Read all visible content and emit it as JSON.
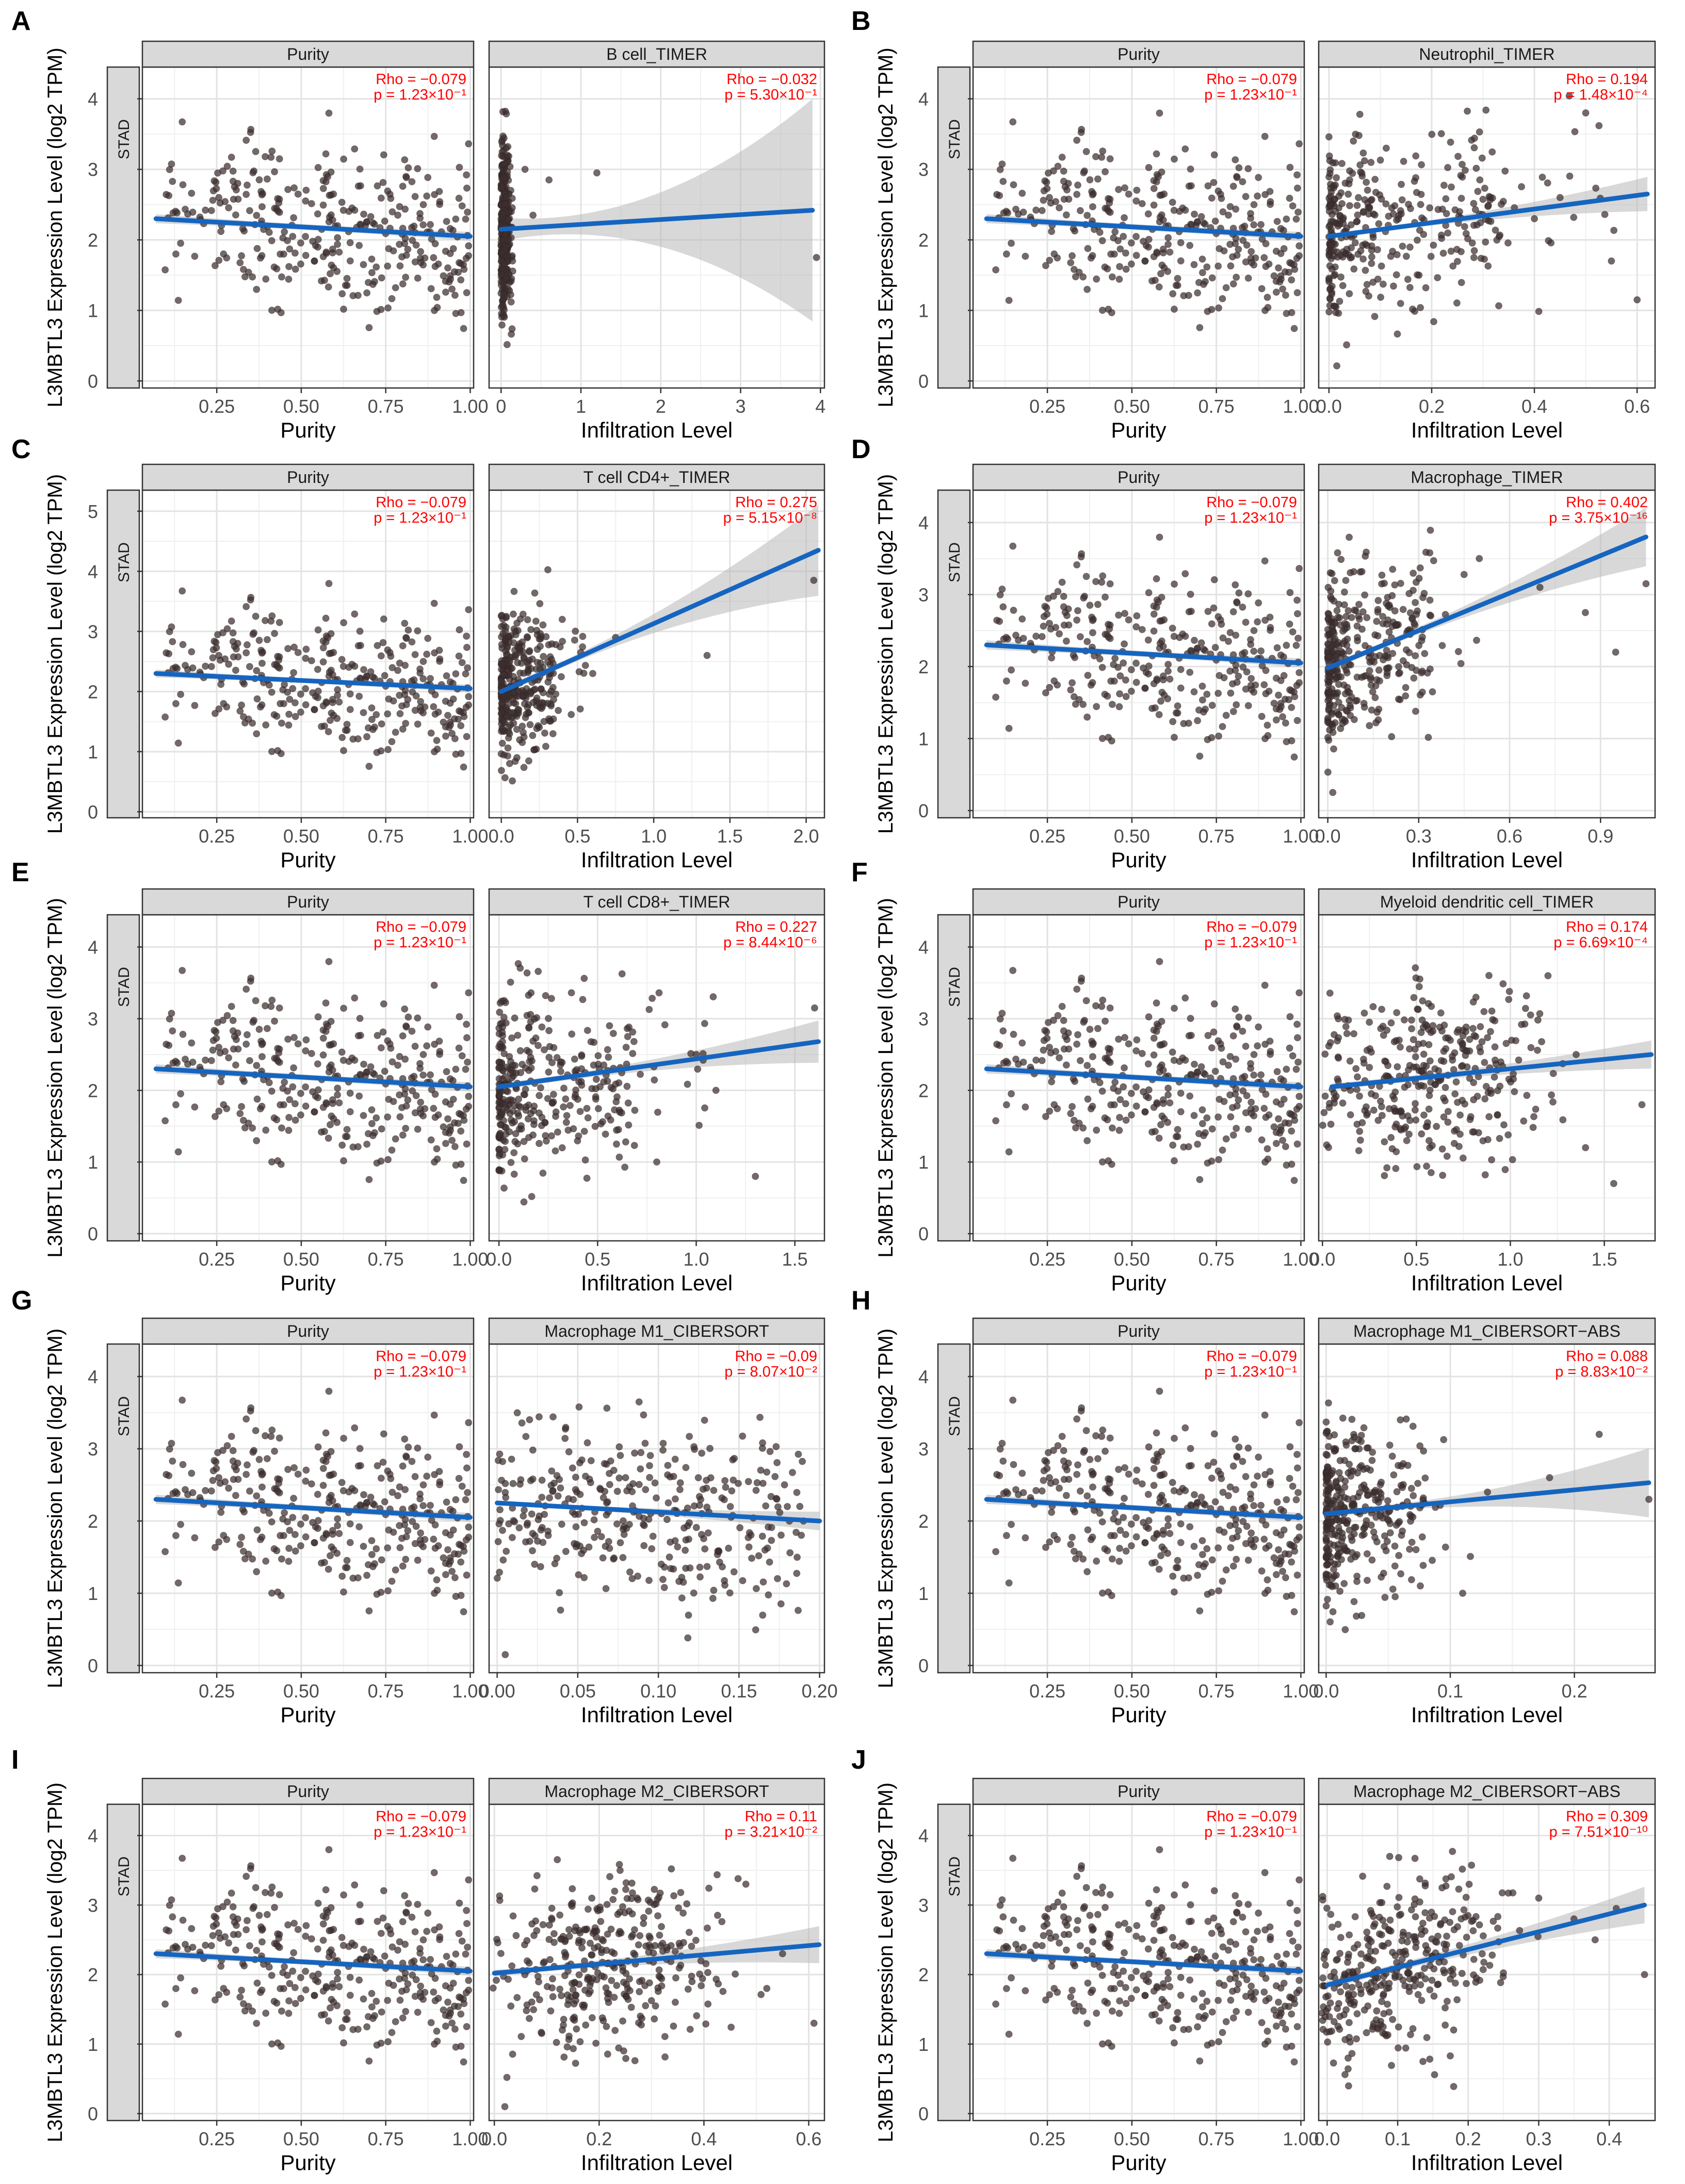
{
  "figure": {
    "y_axis_label": "L3MBTL3 Expression Level (log2 TPM)",
    "row_strip": "STAD",
    "purity_x_label": "Purity",
    "infiltration_x_label": "Infiltration Level"
  },
  "chart_data": [
    {
      "panel": "A",
      "type": "scatter",
      "cancer": "STAD",
      "ylim": [
        -0.1,
        4.45
      ],
      "yticks": [
        0,
        1,
        2,
        3,
        4
      ],
      "purity": {
        "title": "Purity",
        "rho": "Rho = −0.079",
        "p": "p = 1.23×10⁻¹",
        "xlim": [
          0.03,
          1.01
        ],
        "xticks": [
          0.25,
          0.5,
          0.75,
          1.0
        ],
        "xtick_labels": [
          "0.25",
          "0.50",
          "0.75",
          "1.00"
        ],
        "fit": [
          2.3,
          2.05
        ]
      },
      "cell": {
        "title": "B cell_TIMER",
        "rho": "Rho = −0.032",
        "p": "p = 5.30×10⁻¹",
        "xlim": [
          -0.15,
          4.05
        ],
        "xticks": [
          0,
          1,
          2,
          3,
          4
        ],
        "xtick_labels": [
          "0",
          "1",
          "2",
          "3",
          "4"
        ],
        "fit_x": [
          0,
          3.9
        ],
        "fit": [
          2.15,
          2.42
        ],
        "band": [
          0.12,
          1.15
        ],
        "dist": "spike",
        "spike_max": 0.15,
        "outliers": [
          [
            1.2,
            2.95
          ],
          [
            3.95,
            1.75
          ],
          [
            0.3,
            3.0
          ],
          [
            0.4,
            2.35
          ],
          [
            0.6,
            2.85
          ]
        ]
      }
    },
    {
      "panel": "B",
      "type": "scatter",
      "cancer": "STAD",
      "ylim": [
        -0.1,
        4.45
      ],
      "yticks": [
        0,
        1,
        2,
        3,
        4
      ],
      "purity": {
        "title": "Purity",
        "rho": "Rho = −0.079",
        "p": "p = 1.23×10⁻¹",
        "xlim": [
          0.03,
          1.01
        ],
        "xticks": [
          0.25,
          0.5,
          0.75,
          1.0
        ],
        "xtick_labels": [
          "0.25",
          "0.50",
          "0.75",
          "1.00"
        ],
        "fit": [
          2.3,
          2.05
        ]
      },
      "cell": {
        "title": "Neutrophil_TIMER",
        "rho": "Rho = 0.194",
        "p": "p = 1.48×10⁻⁴",
        "xlim": [
          -0.02,
          0.635
        ],
        "xticks": [
          0,
          0.2,
          0.4,
          0.6
        ],
        "xtick_labels": [
          "0.0",
          "0.2",
          "0.4",
          "0.6"
        ],
        "fit_x": [
          0,
          0.62
        ],
        "fit": [
          2.05,
          2.65
        ],
        "band": [
          0.03,
          0.18
        ],
        "dist": "skew",
        "spike_max": 0.35,
        "outliers": [
          [
            0.55,
            1.7
          ],
          [
            0.6,
            1.15
          ],
          [
            0.4,
            2.3
          ],
          [
            0.5,
            3.8
          ],
          [
            0.45,
            2.6
          ]
        ]
      }
    },
    {
      "panel": "C",
      "type": "scatter",
      "cancer": "STAD",
      "ylim": [
        -0.1,
        5.35
      ],
      "yticks": [
        0,
        1,
        2,
        3,
        4,
        5
      ],
      "purity": {
        "title": "Purity",
        "rho": "Rho = −0.079",
        "p": "p = 1.23×10⁻¹",
        "xlim": [
          0.03,
          1.01
        ],
        "xticks": [
          0.25,
          0.5,
          0.75,
          1.0
        ],
        "xtick_labels": [
          "0.25",
          "0.50",
          "0.75",
          "1.00"
        ],
        "fit": [
          2.3,
          2.05
        ]
      },
      "cell": {
        "title": "T cell CD4+_TIMER",
        "rho": "Rho = 0.275",
        "p": "p = 5.15×10⁻⁸",
        "xlim": [
          -0.08,
          2.12
        ],
        "xticks": [
          0,
          0.5,
          1.0,
          1.5,
          2.0
        ],
        "xtick_labels": [
          "0.0",
          "0.5",
          "1.0",
          "1.5",
          "2.0"
        ],
        "fit_x": [
          0,
          2.08
        ],
        "fit": [
          2.0,
          4.35
        ],
        "band": [
          0.05,
          0.55
        ],
        "dist": "skew",
        "spike_max": 0.35,
        "outliers": [
          [
            0.6,
            2.3
          ],
          [
            0.75,
            2.9
          ],
          [
            1.35,
            2.6
          ],
          [
            2.05,
            3.85
          ],
          [
            0.4,
            3.2
          ]
        ]
      }
    },
    {
      "panel": "D",
      "type": "scatter",
      "cancer": "STAD",
      "ylim": [
        -0.1,
        4.45
      ],
      "yticks": [
        0,
        1,
        2,
        3,
        4
      ],
      "purity": {
        "title": "Purity",
        "rho": "Rho = −0.079",
        "p": "p = 1.23×10⁻¹",
        "xlim": [
          0.03,
          1.01
        ],
        "xticks": [
          0.25,
          0.5,
          0.75,
          1.0
        ],
        "xtick_labels": [
          "0.25",
          "0.50",
          "0.75",
          "1.00"
        ],
        "fit": [
          2.3,
          2.05
        ]
      },
      "cell": {
        "title": "Macrophage_TIMER",
        "rho": "Rho = 0.402",
        "p": "p = 3.75×10⁻¹⁶",
        "xlim": [
          -0.03,
          1.08
        ],
        "xticks": [
          0,
          0.3,
          0.6,
          0.9
        ],
        "xtick_labels": [
          "0.0",
          "0.3",
          "0.6",
          "0.9"
        ],
        "fit_x": [
          0,
          1.05
        ],
        "fit": [
          1.98,
          3.8
        ],
        "band": [
          0.04,
          0.3
        ],
        "dist": "skew",
        "spike_max": 0.35,
        "outliers": [
          [
            0.95,
            2.2
          ],
          [
            1.05,
            3.15
          ],
          [
            0.85,
            2.75
          ],
          [
            0.7,
            3.1
          ],
          [
            0.5,
            3.5
          ]
        ]
      }
    },
    {
      "panel": "E",
      "type": "scatter",
      "cancer": "STAD",
      "ylim": [
        -0.1,
        4.45
      ],
      "yticks": [
        0,
        1,
        2,
        3,
        4
      ],
      "purity": {
        "title": "Purity",
        "rho": "Rho = −0.079",
        "p": "p = 1.23×10⁻¹",
        "xlim": [
          0.03,
          1.01
        ],
        "xticks": [
          0.25,
          0.5,
          0.75,
          1.0
        ],
        "xtick_labels": [
          "0.25",
          "0.50",
          "0.75",
          "1.00"
        ],
        "fit": [
          2.3,
          2.05
        ]
      },
      "cell": {
        "title": "T cell CD8+_TIMER",
        "rho": "Rho = 0.227",
        "p": "p = 8.44×10⁻⁶",
        "xlim": [
          -0.05,
          1.65
        ],
        "xticks": [
          0,
          0.5,
          1.0,
          1.5
        ],
        "xtick_labels": [
          "0.0",
          "0.5",
          "1.0",
          "1.5"
        ],
        "fit_x": [
          0,
          1.62
        ],
        "fit": [
          2.05,
          2.68
        ],
        "band": [
          0.04,
          0.22
        ],
        "dist": "skew",
        "spike_max": 0.7,
        "outliers": [
          [
            0.8,
            1.0
          ],
          [
            1.1,
            2.0
          ],
          [
            1.6,
            3.15
          ],
          [
            1.3,
            0.8
          ],
          [
            1.0,
            2.5
          ]
        ]
      }
    },
    {
      "panel": "F",
      "type": "scatter",
      "cancer": "STAD",
      "ylim": [
        -0.1,
        4.45
      ],
      "yticks": [
        0,
        1,
        2,
        3,
        4
      ],
      "purity": {
        "title": "Purity",
        "rho": "Rho = −0.079",
        "p": "p = 1.23×10⁻¹",
        "xlim": [
          0.03,
          1.01
        ],
        "xticks": [
          0.25,
          0.5,
          0.75,
          1.0
        ],
        "xtick_labels": [
          "0.25",
          "0.50",
          "0.75",
          "1.00"
        ],
        "fit": [
          2.3,
          2.05
        ]
      },
      "cell": {
        "title": "Myeloid dendritic cell_TIMER",
        "rho": "Rho = 0.174",
        "p": "p = 6.69×10⁻⁴",
        "xlim": [
          -0.02,
          1.77
        ],
        "xticks": [
          0,
          0.5,
          1.0,
          1.5
        ],
        "xtick_labels": [
          "0.0",
          "0.5",
          "1.0",
          "1.5"
        ],
        "fit_x": [
          0.05,
          1.75
        ],
        "fit": [
          2.05,
          2.5
        ],
        "band": [
          0.04,
          0.15
        ],
        "dist": "normal",
        "center": 0.55,
        "spread": 0.3,
        "outliers": [
          [
            1.4,
            1.2
          ],
          [
            1.55,
            0.7
          ],
          [
            1.7,
            1.8
          ],
          [
            1.35,
            2.5
          ],
          [
            1.2,
            3.6
          ]
        ]
      }
    },
    {
      "panel": "G",
      "type": "scatter",
      "cancer": "STAD",
      "ylim": [
        -0.1,
        4.45
      ],
      "yticks": [
        0,
        1,
        2,
        3,
        4
      ],
      "purity": {
        "title": "Purity",
        "rho": "Rho = −0.079",
        "p": "p = 1.23×10⁻¹",
        "xlim": [
          0.03,
          1.01
        ],
        "xticks": [
          0.25,
          0.5,
          0.75,
          1.0
        ],
        "xtick_labels": [
          "0.25",
          "0.50",
          "0.75",
          "1.00"
        ],
        "fit": [
          2.3,
          2.05
        ]
      },
      "cell": {
        "title": "Macrophage M1_CIBERSORT",
        "rho": "Rho = −0.09",
        "p": "p = 8.07×10⁻²",
        "xlim": [
          -0.005,
          0.203
        ],
        "xticks": [
          0,
          0.05,
          0.1,
          0.15,
          0.2
        ],
        "xtick_labels": [
          "0.00",
          "0.05",
          "0.10",
          "0.15",
          "0.20"
        ],
        "fit_x": [
          0,
          0.2
        ],
        "fit": [
          2.25,
          2.0
        ],
        "band": [
          0.03,
          0.1
        ],
        "dist": "uniform",
        "spike_max": 0.19,
        "outliers": [
          [
            0.19,
            2.0
          ],
          [
            0.18,
            2.2
          ],
          [
            0.005,
            0.15
          ]
        ]
      }
    },
    {
      "panel": "H",
      "type": "scatter",
      "cancer": "STAD",
      "ylim": [
        -0.1,
        4.45
      ],
      "yticks": [
        0,
        1,
        2,
        3,
        4
      ],
      "purity": {
        "title": "Purity",
        "rho": "Rho = −0.079",
        "p": "p = 1.23×10⁻¹",
        "xlim": [
          0.03,
          1.01
        ],
        "xticks": [
          0.25,
          0.5,
          0.75,
          1.0
        ],
        "xtick_labels": [
          "0.25",
          "0.50",
          "0.75",
          "1.00"
        ],
        "fit": [
          2.3,
          2.05
        ]
      },
      "cell": {
        "title": "Macrophage M1_CIBERSORT−ABS",
        "rho": "Rho = 0.088",
        "p": "p = 8.83×10⁻²",
        "xlim": [
          -0.006,
          0.265
        ],
        "xticks": [
          0,
          0.1,
          0.2
        ],
        "xtick_labels": [
          "0.0",
          "0.1",
          "0.2"
        ],
        "fit_x": [
          0,
          0.26
        ],
        "fit": [
          2.1,
          2.53
        ],
        "band": [
          0.04,
          0.35
        ],
        "dist": "skew",
        "spike_max": 0.08,
        "outliers": [
          [
            0.22,
            3.2
          ],
          [
            0.26,
            2.3
          ],
          [
            0.18,
            2.6
          ],
          [
            0.13,
            2.4
          ],
          [
            0.11,
            1.0
          ]
        ]
      }
    },
    {
      "panel": "I",
      "type": "scatter",
      "cancer": "STAD",
      "ylim": [
        -0.1,
        4.45
      ],
      "yticks": [
        0,
        1,
        2,
        3,
        4
      ],
      "purity": {
        "title": "Purity",
        "rho": "Rho = −0.079",
        "p": "p = 1.23×10⁻¹",
        "xlim": [
          0.03,
          1.01
        ],
        "xticks": [
          0.25,
          0.5,
          0.75,
          1.0
        ],
        "xtick_labels": [
          "0.25",
          "0.50",
          "0.75",
          "1.00"
        ],
        "fit": [
          2.3,
          2.05
        ]
      },
      "cell": {
        "title": "Macrophage M2_CIBERSORT",
        "rho": "Rho = 0.11",
        "p": "p = 3.21×10⁻²",
        "xlim": [
          -0.01,
          0.63
        ],
        "xticks": [
          0,
          0.2,
          0.4,
          0.6
        ],
        "xtick_labels": [
          "0.0",
          "0.2",
          "0.4",
          "0.6"
        ],
        "fit_x": [
          0,
          0.62
        ],
        "fit": [
          2.02,
          2.43
        ],
        "band": [
          0.04,
          0.2
        ],
        "dist": "normal",
        "center": 0.22,
        "spread": 0.1,
        "outliers": [
          [
            0.52,
            1.8
          ],
          [
            0.55,
            2.3
          ],
          [
            0.61,
            1.3
          ],
          [
            0.02,
            0.1
          ],
          [
            0.48,
            3.3
          ]
        ]
      }
    },
    {
      "panel": "J",
      "type": "scatter",
      "cancer": "STAD",
      "ylim": [
        -0.1,
        4.45
      ],
      "yticks": [
        0,
        1,
        2,
        3,
        4
      ],
      "purity": {
        "title": "Purity",
        "rho": "Rho = −0.079",
        "p": "p = 1.23×10⁻¹",
        "xlim": [
          0.03,
          1.01
        ],
        "xticks": [
          0.25,
          0.5,
          0.75,
          1.0
        ],
        "xtick_labels": [
          "0.25",
          "0.50",
          "0.75",
          "1.00"
        ],
        "fit": [
          2.3,
          2.05
        ]
      },
      "cell": {
        "title": "Macrophage M2_CIBERSORT−ABS",
        "rho": "Rho = 0.309",
        "p": "p = 7.51×10⁻¹⁰",
        "xlim": [
          -0.012,
          0.465
        ],
        "xticks": [
          0,
          0.1,
          0.2,
          0.3,
          0.4
        ],
        "xtick_labels": [
          "0.0",
          "0.1",
          "0.2",
          "0.3",
          "0.4"
        ],
        "fit_x": [
          0,
          0.45
        ],
        "fit": [
          1.85,
          3.0
        ],
        "band": [
          0.05,
          0.2
        ],
        "dist": "normal",
        "center": 0.1,
        "spread": 0.07,
        "outliers": [
          [
            0.45,
            2.0
          ],
          [
            0.35,
            2.8
          ],
          [
            0.3,
            3.1
          ],
          [
            0.38,
            2.5
          ],
          [
            0.41,
            2.95
          ]
        ]
      }
    }
  ]
}
